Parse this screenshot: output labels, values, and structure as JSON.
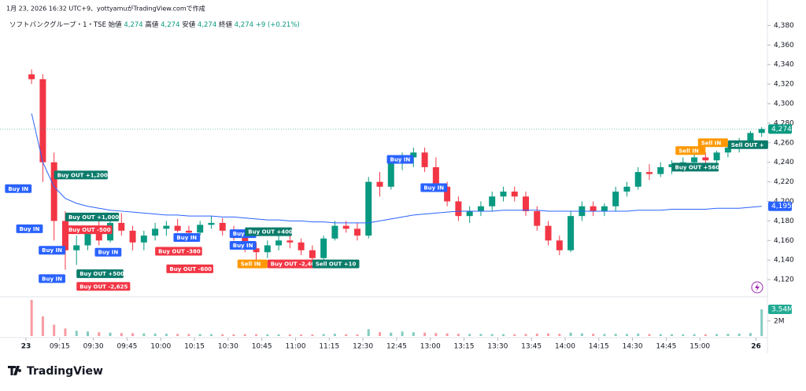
{
  "chart_data": {
    "type": "candlestick",
    "credit": "1月 23, 2026 16:32 UTC+9、yottyamuがTradingView.comで作成",
    "symbol": "ソフトバンクグループ・1・TSE",
    "ohlc_legend": [
      {
        "label": "始値",
        "value": "4,274"
      },
      {
        "label": "高値",
        "value": "4,274"
      },
      {
        "label": "安値",
        "value": "4,274"
      },
      {
        "label": "終値",
        "value": "4,274"
      }
    ],
    "change": "+9 (+0.21%)",
    "brand": "TradingView",
    "up_color": "#089981",
    "down_color": "#f23645",
    "categories": [
      "09:00",
      "09:05",
      "09:10",
      "09:15",
      "09:20",
      "09:25",
      "09:30",
      "09:35",
      "09:40",
      "09:45",
      "09:50",
      "09:55",
      "10:00",
      "10:05",
      "10:10",
      "10:15",
      "10:20",
      "10:25",
      "10:30",
      "10:35",
      "10:40",
      "10:45",
      "10:50",
      "10:55",
      "11:00",
      "11:05",
      "11:10",
      "11:15",
      "11:20",
      "11:25",
      "12:30",
      "12:35",
      "12:40",
      "12:45",
      "12:50",
      "12:55",
      "13:00",
      "13:05",
      "13:10",
      "13:15",
      "13:20",
      "13:25",
      "13:30",
      "13:35",
      "13:40",
      "13:45",
      "13:50",
      "13:55",
      "14:00",
      "14:05",
      "14:10",
      "14:15",
      "14:20",
      "14:25",
      "14:30",
      "14:35",
      "14:40",
      "14:45",
      "14:50",
      "14:55",
      "15:00",
      "15:05",
      "15:10",
      "15:15",
      "15:20",
      "15:25"
    ],
    "open": [
      4330,
      4325,
      4240,
      4180,
      4150,
      4155,
      4170,
      4160,
      4178,
      4170,
      4158,
      4165,
      4172,
      4175,
      4170,
      4168,
      4176,
      4178,
      4170,
      4165,
      4152,
      4148,
      4155,
      4160,
      4158,
      4150,
      4142,
      4162,
      4175,
      4172,
      4165,
      4220,
      4215,
      4240,
      4245,
      4250,
      4235,
      4215,
      4200,
      4185,
      4190,
      4195,
      4205,
      4210,
      4205,
      4190,
      4175,
      4160,
      4150,
      4185,
      4195,
      4190,
      4195,
      4210,
      4215,
      4230,
      4228,
      4235,
      4238,
      4240,
      4245,
      4242,
      4250,
      4255,
      4260,
      4270
    ],
    "high": [
      4335,
      4330,
      4250,
      4190,
      4165,
      4175,
      4180,
      4185,
      4188,
      4175,
      4170,
      4178,
      4180,
      4182,
      4175,
      4180,
      4185,
      4183,
      4175,
      4168,
      4158,
      4160,
      4165,
      4168,
      4162,
      4155,
      4165,
      4180,
      4180,
      4178,
      4225,
      4230,
      4245,
      4250,
      4255,
      4255,
      4245,
      4220,
      4205,
      4195,
      4200,
      4210,
      4215,
      4215,
      4210,
      4195,
      4180,
      4165,
      4190,
      4200,
      4200,
      4198,
      4215,
      4220,
      4235,
      4238,
      4240,
      4242,
      4245,
      4248,
      4250,
      4252,
      4258,
      4265,
      4272,
      4276
    ],
    "low": [
      4320,
      4220,
      4160,
      4130,
      4135,
      4150,
      4155,
      4158,
      4165,
      4150,
      4150,
      4160,
      4165,
      4168,
      4160,
      4165,
      4172,
      4165,
      4160,
      4148,
      4140,
      4142,
      4150,
      4152,
      4145,
      4138,
      4140,
      4160,
      4168,
      4160,
      4162,
      4205,
      4212,
      4232,
      4235,
      4230,
      4210,
      4195,
      4180,
      4178,
      4185,
      4190,
      4200,
      4200,
      4185,
      4170,
      4155,
      4145,
      4148,
      4180,
      4185,
      4185,
      4190,
      4205,
      4212,
      4222,
      4225,
      4228,
      4230,
      4235,
      4238,
      4238,
      4245,
      4250,
      4258,
      4266
    ],
    "close": [
      4325,
      4240,
      4180,
      4150,
      4155,
      4170,
      4160,
      4178,
      4170,
      4158,
      4165,
      4172,
      4175,
      4170,
      4168,
      4176,
      4178,
      4170,
      4165,
      4152,
      4148,
      4155,
      4160,
      4158,
      4150,
      4142,
      4162,
      4175,
      4172,
      4165,
      4220,
      4215,
      4240,
      4245,
      4250,
      4235,
      4215,
      4200,
      4185,
      4190,
      4195,
      4205,
      4210,
      4205,
      4190,
      4175,
      4160,
      4150,
      4185,
      4195,
      4190,
      4195,
      4210,
      4215,
      4230,
      4228,
      4235,
      4238,
      4240,
      4245,
      4242,
      4250,
      4255,
      4260,
      4270,
      4274
    ],
    "vwap": {
      "color": "#2962ff",
      "values": [
        4290,
        4240,
        4215,
        4203,
        4198,
        4195,
        4193,
        4191,
        4190,
        4189,
        4188,
        4187,
        4186,
        4186,
        4185,
        4185,
        4185,
        4184,
        4184,
        4183,
        4182,
        4181,
        4181,
        4180,
        4180,
        4179,
        4179,
        4178,
        4178,
        4178,
        4178,
        4180,
        4182,
        4184,
        4186,
        4187,
        4188,
        4189,
        4190,
        4190,
        4190,
        4190,
        4191,
        4191,
        4191,
        4191,
        4190,
        4190,
        4190,
        4190,
        4190,
        4190,
        4190,
        4190,
        4191,
        4191,
        4191,
        4192,
        4192,
        4192,
        4192,
        4193,
        4193,
        4193,
        4194,
        4195
      ]
    },
    "volume": [
      4800000,
      2600000,
      1500000,
      1000000,
      700000,
      600000,
      500000,
      450000,
      400000,
      380000,
      350000,
      330000,
      300000,
      280000,
      270000,
      260000,
      250000,
      240000,
      230000,
      250000,
      240000,
      230000,
      220000,
      210000,
      200000,
      220000,
      260000,
      300000,
      250000,
      220000,
      900000,
      500000,
      450000,
      600000,
      500000,
      450000,
      400000,
      350000,
      300000,
      280000,
      270000,
      260000,
      250000,
      240000,
      280000,
      320000,
      350000,
      300000,
      450000,
      350000,
      300000,
      280000,
      300000,
      280000,
      320000,
      260000,
      250000,
      240000,
      230000,
      250000,
      240000,
      260000,
      300000,
      320000,
      400000,
      3540000
    ],
    "volume_labels": {
      "65": "3.54M"
    },
    "last_label": "4,274",
    "vwap_label": "4,195",
    "ylim": [
      4104,
      4398
    ],
    "yticks": [
      {
        "value": 4120,
        "label": "4,120"
      },
      {
        "value": 4140,
        "label": "4,140"
      },
      {
        "value": 4160,
        "label": "4,160"
      },
      {
        "value": 4180,
        "label": "4,180"
      },
      {
        "value": 4200,
        "label": "4,200"
      },
      {
        "value": 4220,
        "label": "4,220"
      },
      {
        "value": 4240,
        "label": "4,240"
      },
      {
        "value": 4260,
        "label": "4,260"
      },
      {
        "value": 4280,
        "label": "4,280"
      },
      {
        "value": 4300,
        "label": "4,300"
      },
      {
        "value": 4320,
        "label": "4,320"
      },
      {
        "value": 4340,
        "label": "4,340"
      },
      {
        "value": 4360,
        "label": "4,360"
      },
      {
        "value": 4380,
        "label": "4,380"
      }
    ],
    "vlim": [
      0,
      5000000
    ],
    "vticks": [
      {
        "value": 2000000,
        "label": "2M"
      }
    ],
    "xticks": [
      {
        "value": "09:00",
        "label": "23"
      },
      "09:15",
      "09:30",
      "09:45",
      "10:00",
      "10:15",
      "10:30",
      "10:45",
      "11:00",
      "11:15",
      "12:30",
      "12:45",
      "13:00",
      "13:15",
      "13:30",
      "13:45",
      "14:00",
      "14:15",
      "14:30",
      "14:45",
      "15:00",
      {
        "value": "15:25",
        "label": "26"
      }
    ],
    "annotations": [
      {
        "text": "Buy IN",
        "x": "09:00",
        "y": 4213,
        "color": "#2962ff"
      },
      {
        "text": "Buy OUT +1,200",
        "x": "09:10",
        "y": 4227,
        "color": "#0b7b6a"
      },
      {
        "text": "Buy IN",
        "x": "09:05",
        "y": 4172,
        "color": "#2962ff"
      },
      {
        "text": "Buy OUT +1,000",
        "x": "09:15",
        "y": 4184,
        "color": "#0b7b6a"
      },
      {
        "text": "Buy OUT -500",
        "x": "09:15",
        "y": 4171,
        "color": "#f23645"
      },
      {
        "text": "Buy IN",
        "x": "09:15",
        "y": 4150,
        "color": "#2962ff"
      },
      {
        "text": "Buy IN",
        "x": "09:40",
        "y": 4148,
        "color": "#2962ff"
      },
      {
        "text": "Buy OUT -380",
        "x": "09:55",
        "y": 4149,
        "color": "#f23645"
      },
      {
        "text": "Buy OUT -600",
        "x": "10:00",
        "y": 4131,
        "color": "#f23645"
      },
      {
        "text": "Buy OUT +500",
        "x": "09:20",
        "y": 4126,
        "color": "#0b7b6a"
      },
      {
        "text": "Buy IN",
        "x": "09:15",
        "y": 4121,
        "color": "#2962ff"
      },
      {
        "text": "Buy OUT -2,625",
        "x": "09:20",
        "y": 4113,
        "color": "#f23645"
      },
      {
        "text": "Buy IN",
        "x": "10:15",
        "y": 4163,
        "color": "#2962ff"
      },
      {
        "text": "Buy IN",
        "x": "10:40",
        "y": 4167,
        "color": "#2962ff"
      },
      {
        "text": "Buy OUT +400",
        "x": "10:35",
        "y": 4169,
        "color": "#0b7b6a"
      },
      {
        "text": "Buy IN",
        "x": "10:40",
        "y": 4155,
        "color": "#2962ff"
      },
      {
        "text": "Sell IN",
        "x": "10:45",
        "y": 4136,
        "color": "#ff9800"
      },
      {
        "text": "Buy OUT -2,400",
        "x": "10:45",
        "y": 4136,
        "color": "#f23645"
      },
      {
        "text": "Sell OUT +10",
        "x": "11:05",
        "y": 4136,
        "color": "#0b7b6a"
      },
      {
        "text": "Buy IN",
        "x": "12:50",
        "y": 4243,
        "color": "#2962ff"
      },
      {
        "text": "Buy IN",
        "x": "13:05",
        "y": 4214,
        "color": "#2962ff"
      },
      {
        "text": "Buy OUT +560",
        "x": "14:45",
        "y": 4235,
        "color": "#0b7b6a"
      },
      {
        "text": "Sell IN",
        "x": "15:00",
        "y": 4252,
        "color": "#ff9800"
      },
      {
        "text": "Sell IN",
        "x": "15:10",
        "y": 4260,
        "color": "#ff9800"
      },
      {
        "text": "Sell OUT +",
        "x": "15:10",
        "y": 4258,
        "color": "#0b7b6a"
      }
    ]
  }
}
